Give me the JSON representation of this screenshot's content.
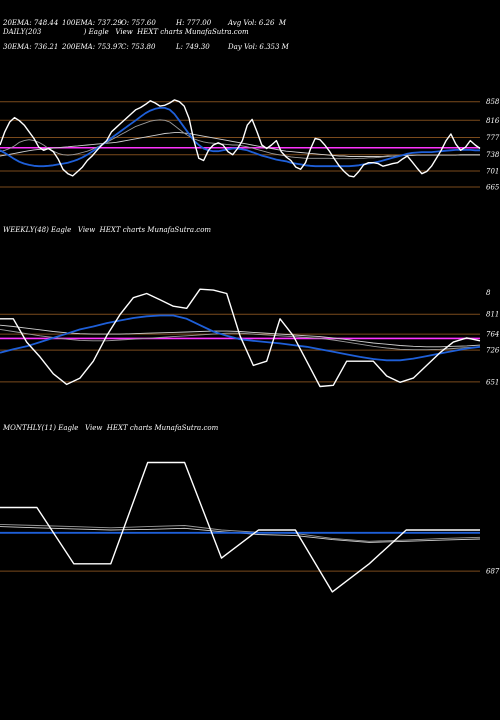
{
  "header": {
    "col1": [
      "20EMA: 748.44",
      "30EMA: 736.21"
    ],
    "col2": [
      "100EMA: 737.29",
      "200EMA: 753.97"
    ],
    "col3": [
      "O: 757.60",
      "C: 753.80"
    ],
    "col4": [
      "H: 777.00",
      "L: 749.30"
    ],
    "col5": [
      "Avg Vol: 6.26  M",
      "Day Vol: 6.353 M"
    ]
  },
  "panels": {
    "daily_label": "DAILY(203                   ) Eagle   View  HEXT charts MunafaSutra.com",
    "weekly_label": "WEEKLY(48) Eagle   View  HEXT charts MunafaSutra.com",
    "monthly_label": "MONTHLY(11) Eagle   View  HEXT charts MunafaSutra.com"
  },
  "colors": {
    "background": "#000000",
    "price_line": "#ffffff",
    "ema_blue": "#1e5fd8",
    "ema_gray": "#9a9a9a",
    "level_line": "#7a4a1c",
    "magenta_line": "#ff33ff"
  },
  "chart_data": [
    {
      "type": "line",
      "name": "daily",
      "levels": [
        858,
        816,
        777,
        738,
        701,
        665
      ],
      "highlight_level": 753.8,
      "ylim": [
        640,
        880
      ],
      "series": [
        {
          "role": "price",
          "values": [
            760,
            790,
            812,
            822,
            815,
            805,
            790,
            775,
            755,
            748,
            752,
            745,
            728,
            705,
            695,
            690,
            700,
            710,
            725,
            735,
            748,
            760,
            770,
            790,
            800,
            810,
            820,
            830,
            840,
            845,
            852,
            860,
            855,
            848,
            850,
            855,
            862,
            858,
            848,
            820,
            770,
            730,
            725,
            748,
            760,
            765,
            760,
            745,
            738,
            752,
            770,
            805,
            818,
            790,
            760,
            752,
            760,
            770,
            745,
            733,
            725,
            710,
            705,
            720,
            750,
            775,
            772,
            760,
            745,
            728,
            712,
            700,
            690,
            688,
            700,
            715,
            720,
            720,
            718,
            712,
            715,
            718,
            720,
            728,
            735,
            722,
            708,
            695,
            700,
            712,
            730,
            748,
            770,
            785,
            762,
            748,
            755,
            770,
            760,
            752
          ]
        },
        {
          "role": "ema_blue",
          "values": [
            748,
            742,
            735,
            728,
            722,
            718,
            715,
            713,
            712,
            712,
            713,
            714,
            716,
            718,
            720,
            723,
            727,
            732,
            738,
            745,
            752,
            760,
            768,
            776,
            784,
            792,
            800,
            808,
            816,
            824,
            832,
            838,
            842,
            844,
            844,
            840,
            830,
            815,
            800,
            785,
            770,
            760,
            752,
            748,
            746,
            746,
            748,
            750,
            752,
            752,
            750,
            748,
            744,
            740,
            736,
            733,
            730,
            727,
            725,
            723,
            720,
            718,
            716,
            714,
            713,
            712,
            712,
            712,
            712,
            712,
            712,
            712,
            712,
            713,
            714,
            716,
            718,
            720,
            722,
            725,
            728,
            731,
            734,
            737,
            740,
            742,
            743,
            744,
            744,
            744,
            745,
            746,
            747,
            748,
            749,
            749,
            749,
            749,
            748,
            748
          ]
        },
        {
          "role": "ema_gray",
          "values": [
            745,
            748,
            752,
            758,
            766,
            770,
            772,
            770,
            766,
            760,
            752,
            746,
            741,
            738,
            737,
            738,
            740,
            743,
            746,
            750,
            755,
            760,
            766,
            772,
            778,
            784,
            790,
            796,
            802,
            806,
            810,
            814,
            816,
            817,
            816,
            812,
            804,
            795,
            787,
            780,
            774,
            770,
            767,
            765,
            764,
            763,
            762,
            761,
            760,
            760,
            758,
            756,
            753,
            750,
            747,
            744,
            741,
            739,
            737,
            735,
            733,
            732,
            731,
            730,
            730,
            730,
            730,
            730,
            730,
            729,
            729,
            729,
            729,
            729,
            730,
            730,
            731,
            731,
            732,
            733,
            734,
            735,
            736,
            737,
            737,
            737,
            737,
            737,
            737,
            737,
            737,
            737,
            737,
            737,
            737,
            737,
            737,
            737,
            737,
            737
          ]
        },
        {
          "role": "ema_gray2",
          "values": [
            735,
            737,
            739,
            741,
            743,
            745,
            747,
            749,
            750,
            751,
            752,
            753,
            754,
            755,
            756,
            757,
            758,
            759,
            760,
            761,
            762,
            763,
            764,
            765,
            766,
            768,
            770,
            772,
            774,
            776,
            778,
            780,
            782,
            784,
            786,
            787,
            788,
            788,
            787,
            786,
            784,
            782,
            780,
            778,
            776,
            774,
            772,
            770,
            768,
            766,
            764,
            762,
            760,
            758,
            756,
            754,
            752,
            750,
            748,
            746,
            745,
            744,
            743,
            742,
            741,
            740,
            739,
            738,
            737,
            736,
            735,
            735,
            734,
            734,
            734,
            734,
            734,
            734,
            734,
            734,
            735,
            735,
            735,
            736,
            736,
            736,
            737,
            737,
            737,
            737,
            737,
            737,
            737,
            737,
            737,
            738,
            738,
            738,
            738,
            738
          ]
        }
      ]
    },
    {
      "type": "line",
      "name": "weekly",
      "levels": [
        811,
        764,
        726,
        651
      ],
      "top_tick": "8",
      "highlight_level": 753.8,
      "ylim": [
        620,
        880
      ],
      "series": [
        {
          "role": "price",
          "values": [
            800,
            800,
            745,
            710,
            670,
            645,
            660,
            700,
            760,
            810,
            850,
            860,
            845,
            830,
            825,
            870,
            868,
            860,
            760,
            690,
            700,
            800,
            760,
            700,
            640,
            643,
            700,
            700,
            700,
            665,
            650,
            660,
            690,
            720,
            745,
            755,
            748
          ]
        },
        {
          "role": "ema_blue",
          "values": [
            720,
            728,
            735,
            745,
            755,
            765,
            775,
            782,
            790,
            796,
            802,
            806,
            808,
            808,
            800,
            785,
            770,
            760,
            752,
            748,
            745,
            742,
            738,
            734,
            728,
            722,
            716,
            710,
            705,
            702,
            702,
            706,
            712,
            718,
            724,
            730,
            734
          ]
        },
        {
          "role": "ema_gray",
          "values": [
            775,
            770,
            765,
            760,
            756,
            752,
            749,
            748,
            748,
            750,
            752,
            754,
            756,
            758,
            760,
            762,
            764,
            766,
            766,
            764,
            762,
            760,
            758,
            756,
            754,
            750,
            745,
            740,
            735,
            731,
            728,
            727,
            727,
            728,
            730,
            732,
            734
          ]
        },
        {
          "role": "ema_gray2",
          "values": [
            785,
            782,
            778,
            774,
            770,
            767,
            765,
            764,
            764,
            764,
            765,
            766,
            767,
            768,
            769,
            770,
            771,
            771,
            770,
            768,
            766,
            764,
            762,
            760,
            758,
            755,
            751,
            747,
            743,
            740,
            737,
            735,
            734,
            734,
            735,
            736,
            738
          ]
        }
      ]
    },
    {
      "type": "line",
      "name": "monthly",
      "levels": [
        687
      ],
      "ylim": [
        600,
        920
      ],
      "highlight_level": 753.8,
      "series": [
        {
          "role": "price",
          "values": [
            800,
            800,
            700,
            700,
            880,
            880,
            710,
            760,
            760,
            650,
            700,
            760,
            760,
            760
          ]
        },
        {
          "role": "ema_blue",
          "values": [
            755,
            755,
            755,
            755,
            755,
            755,
            755,
            755,
            755,
            755,
            755,
            755,
            755,
            755
          ]
        },
        {
          "role": "ema_gray",
          "values": [
            770,
            768,
            766,
            764,
            766,
            768,
            760,
            756,
            754,
            745,
            740,
            742,
            745,
            747
          ]
        },
        {
          "role": "ema_gray2",
          "values": [
            766,
            764,
            762,
            760,
            761,
            763,
            757,
            752,
            750,
            743,
            738,
            740,
            742,
            744
          ]
        }
      ]
    }
  ],
  "monthly_tick": "687"
}
